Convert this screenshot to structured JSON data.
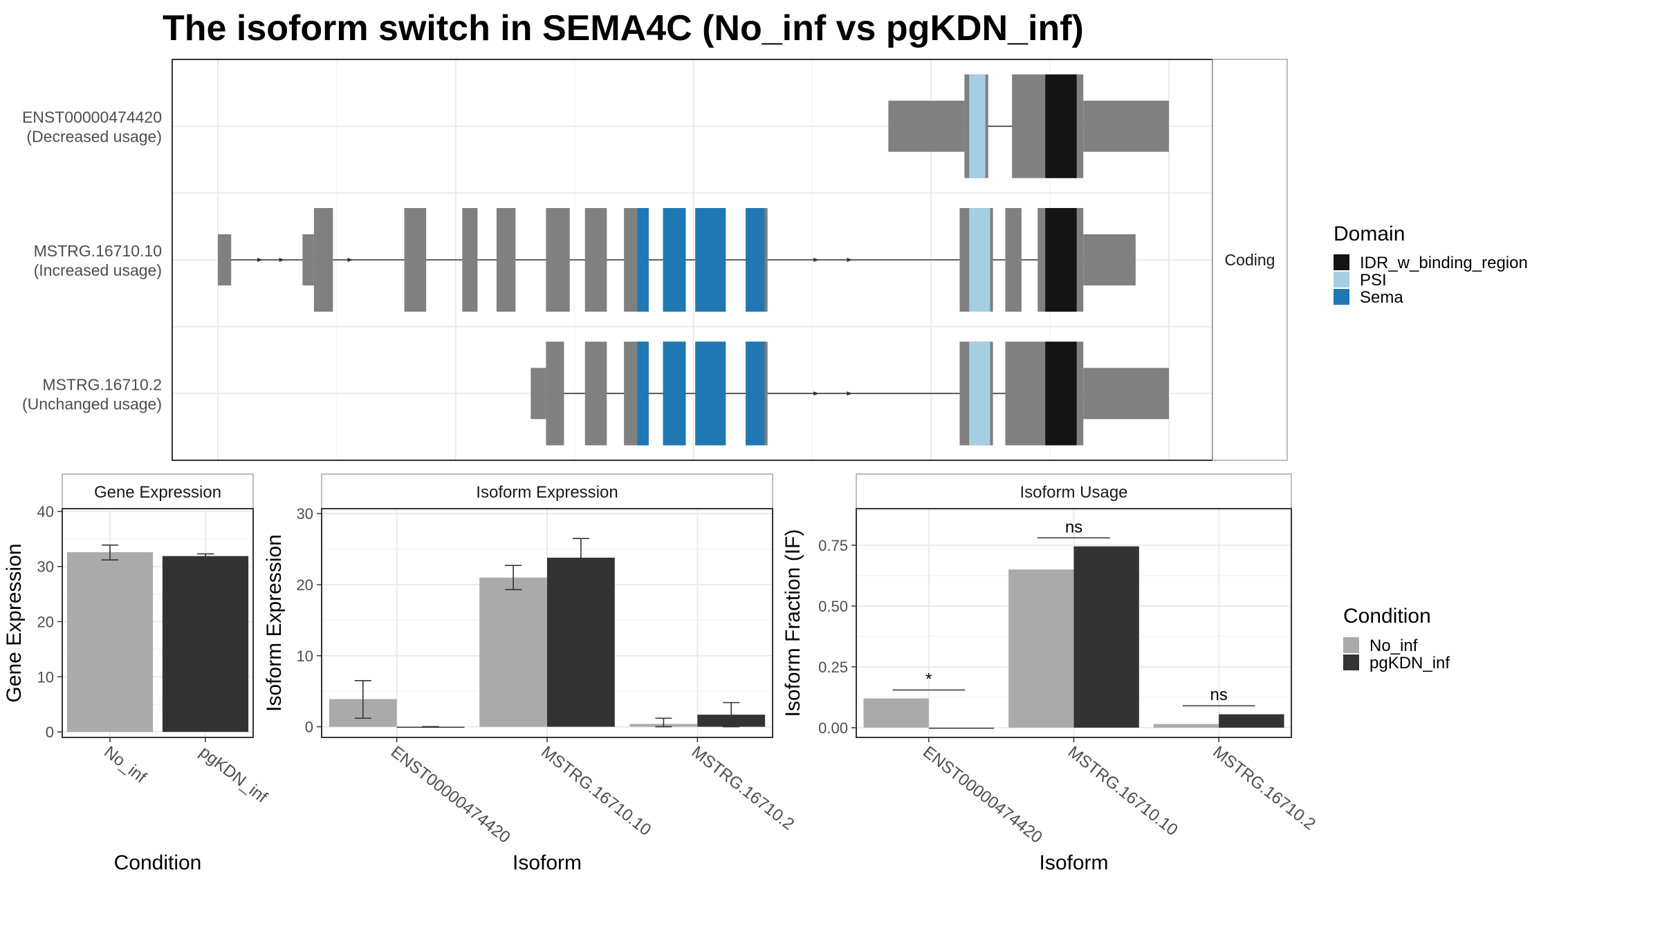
{
  "title": "The isoform switch in SEMA4C (No_inf vs pgKDN_inf)",
  "colors": {
    "idr": "#141414",
    "psi": "#a6cee3",
    "sema": "#1f78b4",
    "exon": "#808080",
    "no_inf": "#aaaaaa",
    "pgkdn_inf": "#333333",
    "grid": "#ebebeb",
    "strip_border": "#a6a6a6"
  },
  "domain_legend": {
    "title": "Domain",
    "items": [
      {
        "label": "IDR_w_binding_region",
        "color": "#141414"
      },
      {
        "label": "PSI",
        "color": "#a6cee3"
      },
      {
        "label": "Sema",
        "color": "#1f78b4"
      }
    ]
  },
  "condition_legend": {
    "title": "Condition",
    "items": [
      {
        "label": "No_inf",
        "color": "#aaaaaa"
      },
      {
        "label": "pgKDN_inf",
        "color": "#333333"
      }
    ]
  },
  "chart_data": [
    {
      "type": "gene_structure",
      "facet_label": "Coding",
      "isoforms": [
        {
          "id": "ENST00000474420",
          "usage": "(Decreased usage)",
          "segments": [
            {
              "start": 0.705,
              "end": 0.785,
              "kind": "utr"
            },
            {
              "start": 0.785,
              "end": 0.81,
              "kind": "cds"
            },
            {
              "start": 0.835,
              "end": 0.91,
              "kind": "cds"
            },
            {
              "start": 0.91,
              "end": 1.0,
              "kind": "utr"
            }
          ],
          "domains": [
            {
              "start": 0.79,
              "end": 0.807,
              "domain": "PSI"
            },
            {
              "start": 0.87,
              "end": 0.903,
              "domain": "IDR_w_binding_region"
            }
          ],
          "arrows": []
        },
        {
          "id": "MSTRG.16710.10",
          "usage": "(Increased usage)",
          "segments": [
            {
              "start": 0.0,
              "end": 0.014,
              "kind": "utr"
            },
            {
              "start": 0.089,
              "end": 0.101,
              "kind": "utr"
            },
            {
              "start": 0.101,
              "end": 0.121,
              "kind": "cds"
            },
            {
              "start": 0.196,
              "end": 0.219,
              "kind": "cds"
            },
            {
              "start": 0.257,
              "end": 0.273,
              "kind": "cds"
            },
            {
              "start": 0.293,
              "end": 0.313,
              "kind": "cds"
            },
            {
              "start": 0.345,
              "end": 0.37,
              "kind": "cds"
            },
            {
              "start": 0.386,
              "end": 0.409,
              "kind": "cds"
            },
            {
              "start": 0.427,
              "end": 0.453,
              "kind": "cds"
            },
            {
              "start": 0.468,
              "end": 0.492,
              "kind": "cds"
            },
            {
              "start": 0.502,
              "end": 0.534,
              "kind": "cds"
            },
            {
              "start": 0.555,
              "end": 0.578,
              "kind": "cds"
            },
            {
              "start": 0.78,
              "end": 0.815,
              "kind": "cds"
            },
            {
              "start": 0.828,
              "end": 0.845,
              "kind": "cds"
            },
            {
              "start": 0.862,
              "end": 0.91,
              "kind": "cds"
            },
            {
              "start": 0.91,
              "end": 0.965,
              "kind": "utr"
            }
          ],
          "domains": [
            {
              "start": 0.441,
              "end": 0.453,
              "domain": "Sema"
            },
            {
              "start": 0.468,
              "end": 0.492,
              "domain": "Sema"
            },
            {
              "start": 0.502,
              "end": 0.534,
              "domain": "Sema"
            },
            {
              "start": 0.555,
              "end": 0.575,
              "domain": "Sema"
            },
            {
              "start": 0.79,
              "end": 0.812,
              "domain": "PSI"
            },
            {
              "start": 0.87,
              "end": 0.903,
              "domain": "IDR_w_binding_region"
            }
          ],
          "arrows": [
            0.045,
            0.068,
            0.14,
            0.63,
            0.665
          ]
        },
        {
          "id": "MSTRG.16710.2",
          "usage": "(Unchanged usage)",
          "segments": [
            {
              "start": 0.329,
              "end": 0.345,
              "kind": "utr"
            },
            {
              "start": 0.345,
              "end": 0.364,
              "kind": "cds"
            },
            {
              "start": 0.386,
              "end": 0.409,
              "kind": "cds"
            },
            {
              "start": 0.427,
              "end": 0.453,
              "kind": "cds"
            },
            {
              "start": 0.468,
              "end": 0.492,
              "kind": "cds"
            },
            {
              "start": 0.502,
              "end": 0.534,
              "kind": "cds"
            },
            {
              "start": 0.555,
              "end": 0.578,
              "kind": "cds"
            },
            {
              "start": 0.78,
              "end": 0.815,
              "kind": "cds"
            },
            {
              "start": 0.828,
              "end": 0.91,
              "kind": "cds"
            },
            {
              "start": 0.91,
              "end": 1.0,
              "kind": "utr"
            }
          ],
          "domains": [
            {
              "start": 0.441,
              "end": 0.453,
              "domain": "Sema"
            },
            {
              "start": 0.468,
              "end": 0.492,
              "domain": "Sema"
            },
            {
              "start": 0.502,
              "end": 0.534,
              "domain": "Sema"
            },
            {
              "start": 0.555,
              "end": 0.575,
              "domain": "Sema"
            },
            {
              "start": 0.79,
              "end": 0.812,
              "domain": "PSI"
            },
            {
              "start": 0.87,
              "end": 0.903,
              "domain": "IDR_w_binding_region"
            }
          ],
          "arrows": [
            0.63,
            0.665
          ]
        }
      ]
    },
    {
      "type": "bar",
      "strip": "Gene Expression",
      "xlabel": "Condition",
      "ylabel": "Gene Expression",
      "ylim": [
        -1,
        40.5
      ],
      "yticks": [
        0,
        10,
        20,
        30,
        40
      ],
      "categories": [
        "No_inf",
        "pgKDN_inf"
      ],
      "values": [
        32.6,
        31.9
      ],
      "errors": [
        [
          31.2,
          33.9
        ],
        [
          31.6,
          32.3
        ]
      ],
      "colors": [
        "#aaaaaa",
        "#333333"
      ],
      "grid": true
    },
    {
      "type": "bar",
      "strip": "Isoform Expression",
      "xlabel": "Isoform",
      "ylabel": "Isoform Expression",
      "ylim": [
        -1.5,
        30.7
      ],
      "yticks": [
        0,
        10,
        20,
        30
      ],
      "categories": [
        "ENST00000474420",
        "MSTRG.16710.10",
        "MSTRG.16710.2"
      ],
      "series": [
        {
          "name": "No_inf",
          "values": [
            3.9,
            21.0,
            0.4
          ],
          "errors": [
            [
              1.2,
              6.5
            ],
            [
              19.3,
              22.7
            ],
            [
              0.0,
              1.2
            ]
          ]
        },
        {
          "name": "pgKDN_inf",
          "values": [
            0.0,
            23.8,
            1.7
          ],
          "errors": [
            [
              0.0,
              0.0
            ],
            [
              20.9,
              26.5
            ],
            [
              0.0,
              3.4
            ]
          ]
        }
      ],
      "grid": true
    },
    {
      "type": "bar",
      "strip": "Isoform Usage",
      "xlabel": "Isoform",
      "ylabel": "Isoform Fraction (IF)",
      "ylim": [
        -0.04,
        0.9
      ],
      "yticks": [
        0,
        0.25,
        0.5,
        0.75
      ],
      "ytick_labels": [
        "0.00",
        "0.25",
        "0.50",
        "0.75"
      ],
      "categories": [
        "ENST00000474420",
        "MSTRG.16710.10",
        "MSTRG.16710.2"
      ],
      "series": [
        {
          "name": "No_inf",
          "values": [
            0.12,
            0.65,
            0.015
          ]
        },
        {
          "name": "pgKDN_inf",
          "values": [
            0.0,
            0.745,
            0.055
          ]
        }
      ],
      "significance": [
        {
          "label": "*",
          "y": 0.155
        },
        {
          "label": "ns",
          "y": 0.78
        },
        {
          "label": "ns",
          "y": 0.09
        }
      ],
      "grid": true
    }
  ]
}
